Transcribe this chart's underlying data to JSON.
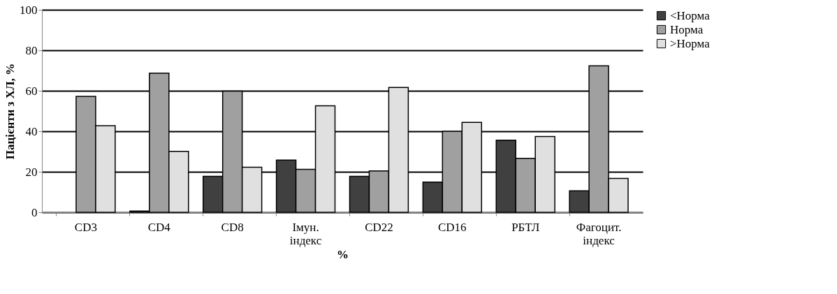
{
  "chart_data": {
    "type": "bar",
    "xlabel": "%",
    "ylabel": "Пацієнти з ХЛ, %",
    "categories": [
      "CD3",
      "CD4",
      "CD8",
      "Імун. індекс",
      "CD22",
      "CD16",
      "РБТЛ",
      "Фагоцит. індекс"
    ],
    "series": [
      {
        "name": "<Норма",
        "color": "#404040",
        "values": [
          null,
          0.6,
          17.8,
          25.8,
          17.8,
          14.9,
          35.6,
          10.6
        ]
      },
      {
        "name": "Норма",
        "color": "#a0a0a0",
        "values": [
          57.2,
          68.7,
          59.8,
          21.2,
          20.4,
          40.0,
          26.6,
          72.3
        ]
      },
      {
        "name": ">Норма",
        "color": "#e0e0e0",
        "values": [
          42.8,
          30.1,
          22.2,
          52.6,
          61.6,
          44.4,
          37.4,
          16.7
        ]
      }
    ],
    "ylim": [
      0,
      100
    ],
    "yticks": [
      0,
      20,
      40,
      60,
      80,
      100
    ],
    "grid": "y",
    "legend": "right"
  }
}
